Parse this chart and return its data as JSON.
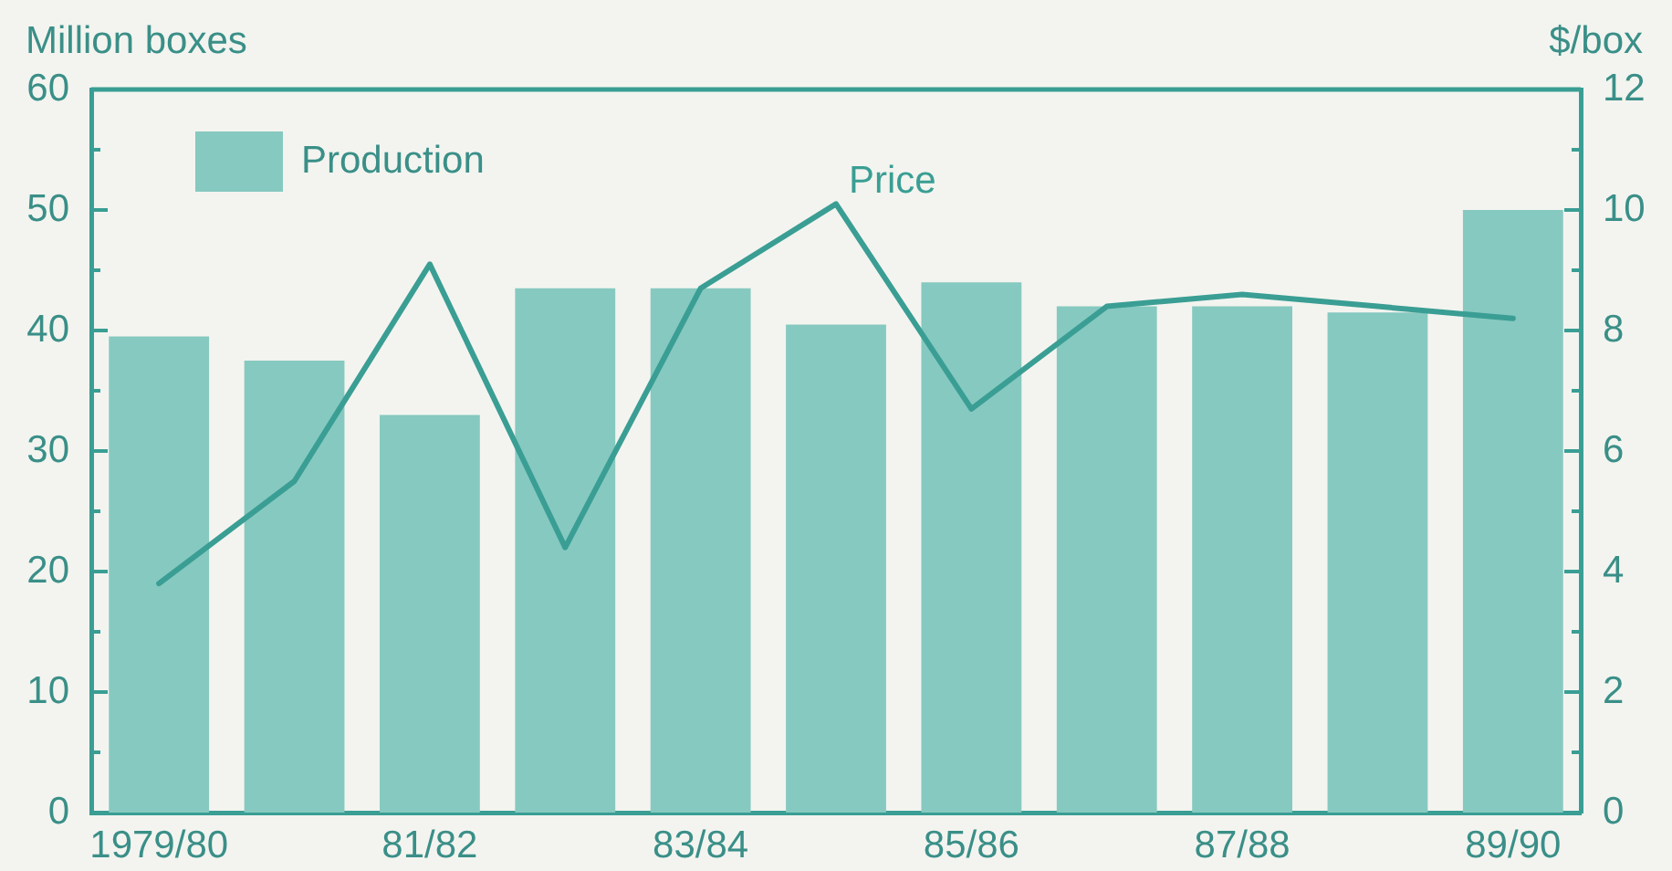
{
  "chart_data": {
    "type": "bar",
    "categories": [
      "1979/80",
      null,
      "81/82",
      null,
      "83/84",
      null,
      "85/86",
      null,
      "87/88",
      null,
      "89/90"
    ],
    "series": [
      {
        "name": "Production",
        "color": "#86c9c0",
        "values": [
          39.5,
          37.5,
          33,
          43.5,
          43.5,
          40.5,
          44,
          42,
          42,
          41.5,
          50
        ]
      },
      {
        "name": "Price",
        "type": "line",
        "axis": "y2",
        "color": "#3a9e94",
        "values": [
          3.8,
          5.5,
          9.1,
          4.4,
          8.7,
          10.1,
          6.7,
          8.4,
          8.6,
          8.4,
          8.2
        ]
      }
    ],
    "ylabel": "Million boxes",
    "y2label": "$/box",
    "ylim": [
      0,
      60
    ],
    "yticks": [
      0,
      {
        "value": 5,
        "label": null
      },
      10,
      {
        "value": 15,
        "label": null
      },
      20,
      {
        "value": 25,
        "label": null
      },
      30,
      {
        "value": 35,
        "label": null
      },
      40,
      {
        "value": 45,
        "label": null
      },
      50,
      {
        "value": 55,
        "label": null
      },
      60
    ],
    "y2lim": [
      0,
      12
    ],
    "y2ticks": [
      0,
      {
        "value": 1,
        "label": null
      },
      2,
      {
        "value": 3,
        "label": null
      },
      4,
      {
        "value": 5,
        "label": null
      },
      6,
      {
        "value": 7,
        "label": null
      },
      8,
      {
        "value": 9,
        "label": null
      },
      10,
      {
        "value": 11,
        "label": null
      },
      12
    ],
    "legend": "top left",
    "grid": false
  }
}
